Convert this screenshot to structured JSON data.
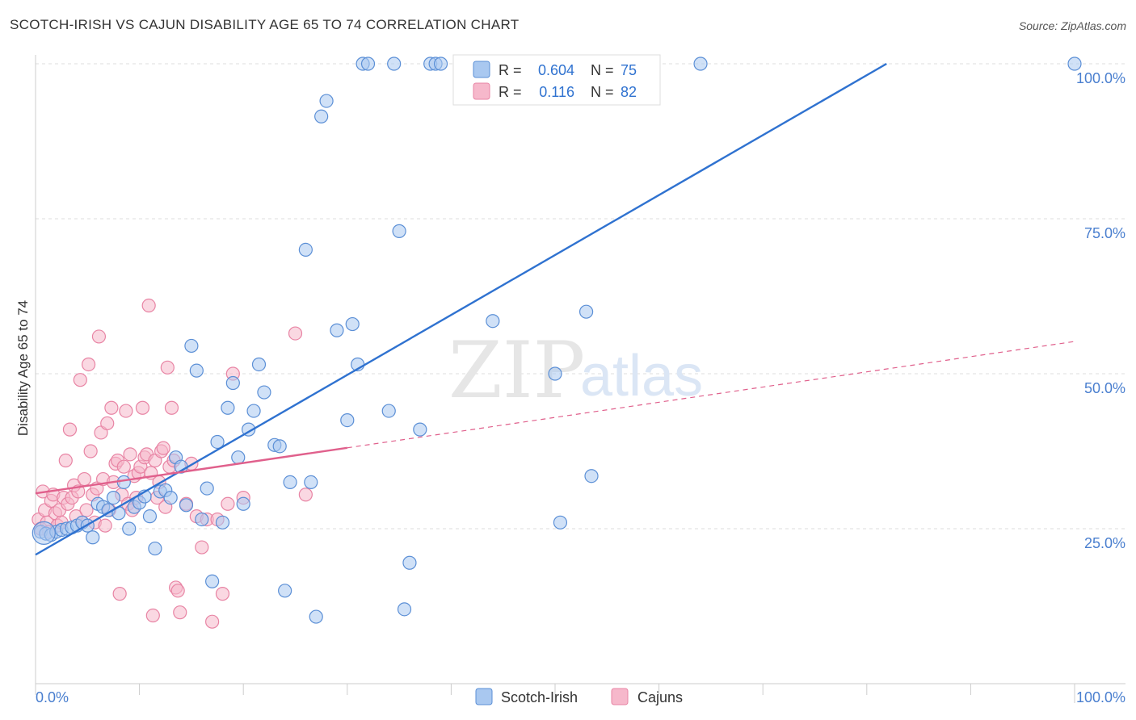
{
  "title": "SCOTCH-IRISH VS CAJUN DISABILITY AGE 65 TO 74 CORRELATION CHART",
  "source": "Source: ZipAtlas.com",
  "watermark": {
    "zip": "ZIP",
    "atlas": "atlas"
  },
  "colors": {
    "blue_fill": "#a9c8f0",
    "blue_stroke": "#5b8fd6",
    "blue_line": "#2f72d0",
    "pink_fill": "#f6b8cb",
    "pink_stroke": "#e884a4",
    "pink_line": "#e0608c",
    "axis_text": "#4a7fcf",
    "grid": "#dddddd"
  },
  "legend_top": {
    "rows": [
      {
        "r_label": "R =",
        "r_value": "0.604",
        "n_label": "N =",
        "n_value": "75",
        "series": "blue"
      },
      {
        "r_label": "R =",
        "r_value": "0.116",
        "n_label": "N =",
        "n_value": "82",
        "series": "pink"
      }
    ]
  },
  "legend_bottom": {
    "items": [
      {
        "label": "Scotch-Irish",
        "series": "blue"
      },
      {
        "label": "Cajuns",
        "series": "pink"
      }
    ]
  },
  "chart_data": {
    "type": "scatter",
    "title": "SCOTCH-IRISH VS CAJUN DISABILITY AGE 65 TO 74 CORRELATION CHART",
    "xlabel": "",
    "ylabel": "Disability Age 65 to 74",
    "xlim": [
      0,
      100
    ],
    "ylim": [
      0,
      100
    ],
    "x_tick_labels": {
      "left": "0.0%",
      "right": "100.0%"
    },
    "y_ticks": [
      {
        "value": 25,
        "label": "25.0%"
      },
      {
        "value": 50,
        "label": "50.0%"
      },
      {
        "value": 75,
        "label": "75.0%"
      },
      {
        "value": 100,
        "label": "100.0%"
      }
    ],
    "series": [
      {
        "name": "Scotch-Irish",
        "color": "blue",
        "R": 0.604,
        "N": 75,
        "trend": {
          "x0": 0,
          "y0": 20.8,
          "x1": 100,
          "y1": 117.5,
          "dashed_from": null
        },
        "points": [
          [
            0.5,
            24.5
          ],
          [
            1.0,
            24.2
          ],
          [
            1.5,
            24.0
          ],
          [
            2.0,
            24.5
          ],
          [
            2.5,
            24.8
          ],
          [
            3.0,
            25.0
          ],
          [
            3.5,
            25.2
          ],
          [
            4.0,
            25.5
          ],
          [
            4.5,
            26.0
          ],
          [
            5.0,
            25.5
          ],
          [
            5.5,
            23.6
          ],
          [
            6.0,
            29.0
          ],
          [
            6.5,
            28.5
          ],
          [
            7.0,
            28.0
          ],
          [
            7.5,
            30.0
          ],
          [
            8.0,
            27.5
          ],
          [
            8.5,
            32.5
          ],
          [
            9.0,
            25.0
          ],
          [
            9.5,
            28.5
          ],
          [
            10.0,
            29.2
          ],
          [
            10.5,
            30.2
          ],
          [
            11.0,
            27.0
          ],
          [
            11.5,
            21.8
          ],
          [
            12.0,
            31.0
          ],
          [
            12.5,
            31.2
          ],
          [
            13.0,
            30.0
          ],
          [
            13.5,
            36.5
          ],
          [
            14.0,
            35.0
          ],
          [
            14.5,
            28.8
          ],
          [
            15.0,
            54.5
          ],
          [
            15.5,
            50.5
          ],
          [
            16.0,
            26.5
          ],
          [
            16.5,
            31.5
          ],
          [
            17.0,
            16.5
          ],
          [
            17.5,
            39.0
          ],
          [
            18.0,
            26.0
          ],
          [
            18.5,
            44.5
          ],
          [
            19.0,
            48.5
          ],
          [
            19.5,
            36.5
          ],
          [
            20.0,
            29.0
          ],
          [
            20.5,
            41.0
          ],
          [
            21.0,
            44.0
          ],
          [
            21.5,
            51.5
          ],
          [
            22.0,
            47.0
          ],
          [
            23.0,
            38.5
          ],
          [
            23.5,
            38.3
          ],
          [
            24.0,
            15.0
          ],
          [
            24.5,
            32.5
          ],
          [
            26.0,
            70.0
          ],
          [
            26.5,
            32.5
          ],
          [
            27.0,
            10.8
          ],
          [
            27.5,
            91.5
          ],
          [
            28.0,
            94.0
          ],
          [
            29.0,
            57.0
          ],
          [
            30.0,
            42.5
          ],
          [
            30.5,
            58.0
          ],
          [
            31.0,
            51.5
          ],
          [
            31.5,
            100.0
          ],
          [
            32.0,
            100.0
          ],
          [
            34.0,
            44.0
          ],
          [
            34.5,
            100.0
          ],
          [
            35.0,
            73.0
          ],
          [
            35.5,
            12.0
          ],
          [
            36.0,
            19.5
          ],
          [
            37.0,
            41.0
          ],
          [
            38.0,
            100.0
          ],
          [
            38.5,
            100.0
          ],
          [
            39.0,
            100.0
          ],
          [
            44.0,
            58.5
          ],
          [
            50.0,
            50.0
          ],
          [
            50.5,
            26.0
          ],
          [
            53.0,
            60.0
          ],
          [
            53.5,
            33.5
          ],
          [
            64.0,
            100.0
          ],
          [
            100.0,
            100.0
          ]
        ]
      },
      {
        "name": "Cajuns",
        "color": "pink",
        "R": 0.116,
        "N": 82,
        "trend": {
          "x0": 0,
          "y0": 30.7,
          "x1": 100,
          "y1": 55.2,
          "dashed_from": 30
        },
        "points": [
          [
            0.3,
            26.5
          ],
          [
            0.5,
            25.0
          ],
          [
            0.7,
            31.0
          ],
          [
            0.9,
            28.0
          ],
          [
            1.1,
            26.0
          ],
          [
            1.3,
            24.5
          ],
          [
            1.5,
            29.5
          ],
          [
            1.7,
            30.5
          ],
          [
            1.9,
            27.5
          ],
          [
            2.1,
            25.5
          ],
          [
            2.3,
            28.0
          ],
          [
            2.5,
            26.0
          ],
          [
            2.7,
            30.0
          ],
          [
            2.9,
            36.0
          ],
          [
            3.1,
            29.0
          ],
          [
            3.3,
            41.0
          ],
          [
            3.5,
            30.0
          ],
          [
            3.7,
            32.0
          ],
          [
            3.9,
            27.0
          ],
          [
            4.1,
            31.0
          ],
          [
            4.3,
            49.0
          ],
          [
            4.5,
            26.0
          ],
          [
            4.7,
            33.0
          ],
          [
            4.9,
            28.0
          ],
          [
            5.1,
            51.5
          ],
          [
            5.3,
            37.5
          ],
          [
            5.5,
            30.5
          ],
          [
            5.7,
            26.0
          ],
          [
            5.9,
            31.5
          ],
          [
            6.1,
            56.0
          ],
          [
            6.3,
            40.5
          ],
          [
            6.5,
            33.0
          ],
          [
            6.7,
            25.5
          ],
          [
            6.9,
            42.0
          ],
          [
            7.1,
            28.0
          ],
          [
            7.3,
            44.5
          ],
          [
            7.5,
            32.5
          ],
          [
            7.7,
            35.5
          ],
          [
            7.9,
            36.0
          ],
          [
            8.1,
            14.5
          ],
          [
            8.3,
            30.5
          ],
          [
            8.5,
            35.0
          ],
          [
            8.7,
            44.0
          ],
          [
            8.9,
            29.0
          ],
          [
            9.1,
            37.0
          ],
          [
            9.3,
            28.0
          ],
          [
            9.5,
            33.5
          ],
          [
            9.7,
            30.0
          ],
          [
            9.9,
            34.0
          ],
          [
            10.1,
            35.0
          ],
          [
            10.3,
            44.5
          ],
          [
            10.5,
            36.5
          ],
          [
            10.7,
            37.0
          ],
          [
            10.9,
            61.0
          ],
          [
            11.1,
            34.0
          ],
          [
            11.3,
            11.0
          ],
          [
            11.5,
            36.0
          ],
          [
            11.7,
            30.0
          ],
          [
            11.9,
            32.5
          ],
          [
            12.1,
            37.5
          ],
          [
            12.3,
            38.0
          ],
          [
            12.5,
            28.5
          ],
          [
            12.7,
            51.0
          ],
          [
            12.9,
            35.0
          ],
          [
            13.1,
            44.5
          ],
          [
            13.3,
            36.0
          ],
          [
            13.5,
            15.5
          ],
          [
            13.7,
            15.0
          ],
          [
            13.9,
            11.5
          ],
          [
            14.5,
            29.0
          ],
          [
            15.0,
            35.5
          ],
          [
            15.5,
            27.0
          ],
          [
            16.0,
            22.0
          ],
          [
            16.5,
            26.5
          ],
          [
            17.0,
            10.0
          ],
          [
            17.5,
            26.5
          ],
          [
            18.0,
            14.5
          ],
          [
            18.5,
            29.0
          ],
          [
            19.0,
            50.0
          ],
          [
            20.0,
            30.0
          ],
          [
            25.0,
            56.5
          ],
          [
            26.0,
            30.5
          ]
        ]
      }
    ]
  }
}
